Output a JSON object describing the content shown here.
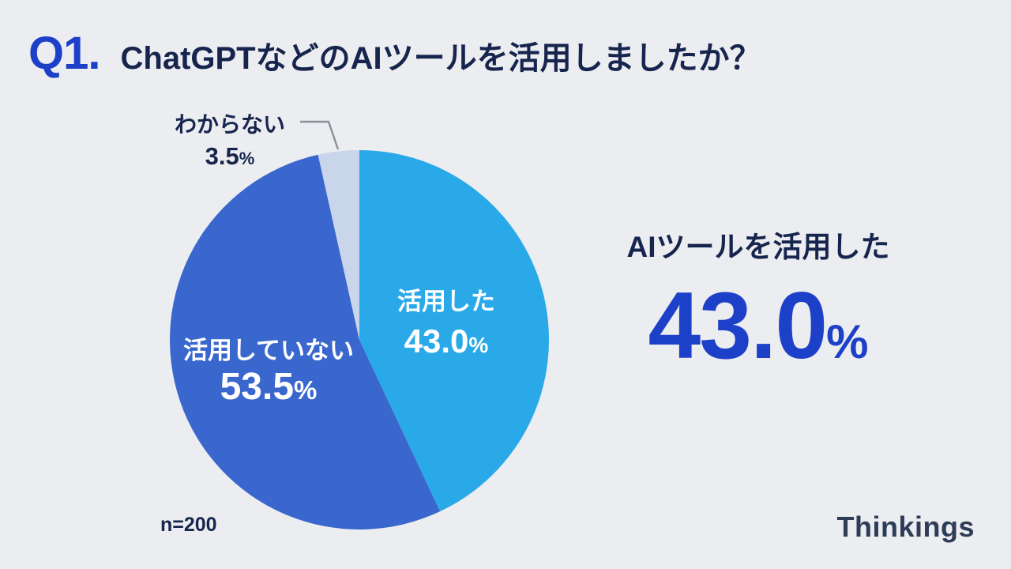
{
  "page": {
    "background": "#ecedf0",
    "question_label": "Q1.",
    "question_title": "ChatGPTなどのAIツールを活用しましたか？",
    "sample_size": "n=200",
    "brand": "Thinkings"
  },
  "highlight": {
    "label": "AIツールを活用した",
    "value_text": "43.0",
    "unit": "%"
  },
  "colors": {
    "accent_blue": "#1d40c8",
    "navy": "#17254e",
    "slice_used": "#29a9e8",
    "slice_not_used": "#3a67cd",
    "slice_unknown": "#c9d5ea",
    "connector_gray": "#8b919b"
  },
  "chart_data": {
    "type": "pie",
    "title": "ChatGPTなどのAIツールを活用しましたか？",
    "sample_label": "n=200",
    "start_angle_deg": 0,
    "direction": "clockwise",
    "slices": [
      {
        "label": "活用した",
        "value": 43.0,
        "value_text": "43.0",
        "unit": "%",
        "color": "#29a9e8",
        "label_placement": "inside"
      },
      {
        "label": "活用していない",
        "value": 53.5,
        "value_text": "53.5",
        "unit": "%",
        "color": "#3a67cd",
        "label_placement": "inside"
      },
      {
        "label": "わからない",
        "value": 3.5,
        "value_text": "3.5",
        "unit": "%",
        "color": "#c9d5ea",
        "label_placement": "outside"
      }
    ]
  }
}
